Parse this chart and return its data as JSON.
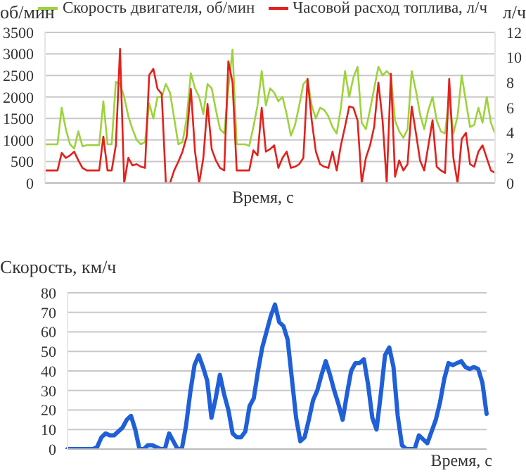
{
  "chart_data": [
    {
      "type": "line",
      "xlabel": "Время, с",
      "ylabel": "об/мин",
      "y2label": "л/ч",
      "categories": [
        null,
        null,
        null,
        null,
        null,
        null,
        null,
        null,
        null,
        null,
        null,
        null,
        null,
        null,
        null,
        null,
        null,
        null,
        null,
        null,
        null,
        null,
        null,
        null,
        null,
        null,
        null,
        null,
        null,
        null,
        null,
        null,
        null,
        null,
        null,
        null,
        null,
        null,
        null,
        null,
        null,
        null,
        null,
        null,
        null,
        null,
        null,
        null,
        null,
        null,
        null,
        null,
        null,
        null,
        null,
        null,
        null,
        null,
        null,
        null,
        null,
        null,
        null,
        null,
        null,
        null,
        null,
        null,
        null,
        null,
        null,
        null,
        null,
        null,
        null,
        null,
        null,
        null,
        null,
        null,
        null,
        null,
        null,
        null,
        null,
        null,
        null,
        null,
        null,
        null,
        null,
        null,
        null,
        null,
        null,
        null,
        null,
        null,
        null,
        null,
        null,
        null,
        null,
        null,
        null,
        null,
        null,
        null,
        null
      ],
      "series": [
        {
          "name": "Скорость двигателя, об/мин",
          "color": "#9ed23c",
          "values": [
            900,
            900,
            900,
            900,
            1750,
            1250,
            900,
            800,
            1200,
            850,
            880,
            880,
            880,
            880,
            1900,
            900,
            900,
            2350,
            2300,
            2000,
            1550,
            1250,
            1000,
            900,
            950,
            1850,
            1500,
            2000,
            2000,
            2300,
            2100,
            1500,
            900,
            950,
            1500,
            2550,
            2200,
            2000,
            1600,
            2300,
            2200,
            1700,
            1250,
            1150,
            2200,
            3100,
            900,
            900,
            900,
            860,
            1300,
            1800,
            2600,
            1800,
            2200,
            2100,
            1900,
            2000,
            1600,
            1100,
            1350,
            1800,
            2300,
            2400,
            1800,
            1500,
            1750,
            1700,
            1550,
            1300,
            1150,
            1750,
            2600,
            2000,
            2450,
            2700,
            1400,
            1250,
            1700,
            2200,
            2700,
            2500,
            2600,
            2500,
            1450,
            1200,
            1050,
            1250,
            2600,
            2150,
            1600,
            1250,
            1700,
            2000,
            1450,
            1200,
            1150,
            2000,
            1150,
            1550,
            2500,
            1900,
            1300,
            1350,
            1750,
            1400,
            2000,
            1400,
            1150
          ]
        },
        {
          "name": "Часовой расход топлива, л/ч",
          "color": "#e3201c",
          "axis": "y2",
          "values": [
            1.0,
            1.0,
            1.0,
            1.0,
            2.4,
            2.0,
            2.2,
            2.5,
            1.8,
            1.2,
            1.0,
            1.0,
            1.0,
            1.0,
            3.7,
            1.0,
            1.0,
            3.0,
            10.7,
            0,
            2.0,
            1.4,
            1.5,
            1.3,
            1.2,
            8.6,
            9.1,
            7.5,
            7.1,
            0,
            0,
            1.0,
            1.7,
            2.5,
            3.7,
            7.5,
            2.5,
            0,
            2.0,
            6.3,
            2.7,
            1.8,
            1.2,
            1.0,
            9.7,
            8.0,
            1.0,
            1.0,
            1.0,
            1.0,
            2.6,
            2.2,
            6.0,
            2.5,
            2.7,
            3.0,
            1.2,
            2.0,
            2.5,
            1.2,
            1.3,
            1.5,
            2.0,
            8.3,
            5.0,
            2.5,
            1.5,
            1.3,
            1.2,
            2.5,
            1.0,
            3.0,
            4.5,
            6.1,
            6.0,
            5.0,
            0,
            2.0,
            3.0,
            4.5,
            8.0,
            5.0,
            0,
            8.7,
            0.5,
            1.8,
            1.0,
            1.5,
            6.1,
            4.0,
            1.8,
            1.0,
            3.0,
            5.0,
            1.3,
            1.0,
            0.8,
            8.3,
            2.0,
            0,
            3.5,
            4.0,
            1.5,
            1.3,
            2.5,
            3.0,
            2.0,
            1.0,
            0.8
          ]
        }
      ],
      "ylim": [
        0,
        3500
      ],
      "yticks": [
        0,
        500,
        1000,
        1500,
        2000,
        2500,
        3000,
        3500
      ],
      "y2lim": [
        0,
        12
      ],
      "y2ticks": [
        0,
        2,
        4,
        6,
        8,
        10,
        12
      ],
      "grid": "y",
      "legend": "top",
      "tick_labels": "y",
      "marker": "none",
      "line_style": "solid"
    },
    {
      "type": "line",
      "xlabel": "Время, с",
      "ylabel": "Скорость, км/ч",
      "categories": [
        null,
        null,
        null,
        null,
        null,
        null,
        null,
        null,
        null,
        null,
        null,
        null,
        null,
        null,
        null,
        null,
        null,
        null,
        null,
        null,
        null,
        null,
        null,
        null,
        null,
        null,
        null,
        null,
        null,
        null,
        null,
        null,
        null,
        null,
        null,
        null,
        null,
        null,
        null,
        null,
        null,
        null,
        null,
        null,
        null,
        null,
        null,
        null,
        null,
        null,
        null,
        null,
        null,
        null,
        null,
        null,
        null,
        null,
        null,
        null,
        null,
        null,
        null,
        null,
        null,
        null,
        null,
        null,
        null,
        null,
        null,
        null,
        null,
        null,
        null,
        null,
        null,
        null,
        null,
        null,
        null,
        null,
        null,
        null,
        null,
        null,
        null,
        null,
        null,
        null,
        null,
        null,
        null,
        null,
        null,
        null,
        null,
        null,
        null,
        null
      ],
      "series": [
        {
          "color": "#1f5fd8",
          "values": [
            0,
            0,
            0,
            0,
            0,
            0,
            0,
            1,
            6,
            8,
            7,
            7,
            9,
            11,
            15,
            17,
            10,
            0,
            0,
            2,
            2,
            1,
            0,
            0,
            8,
            4,
            0,
            0,
            12,
            29,
            43,
            48,
            42,
            35,
            16,
            26,
            38,
            28,
            20,
            8,
            6,
            6,
            9,
            22,
            26,
            40,
            52,
            60,
            68,
            74,
            65,
            63,
            56,
            36,
            16,
            4,
            6,
            15,
            25,
            30,
            38,
            45,
            38,
            30,
            23,
            15,
            28,
            40,
            44,
            44,
            46,
            33,
            16,
            10,
            28,
            48,
            52,
            42,
            17,
            2,
            0,
            0,
            0,
            7,
            5,
            3,
            9,
            15,
            24,
            36,
            44,
            43,
            44,
            45,
            42,
            41,
            42,
            41,
            34,
            18
          ]
        }
      ],
      "ylim": [
        0,
        80
      ],
      "yticks": [
        0,
        10,
        20,
        30,
        40,
        50,
        60,
        70,
        80
      ],
      "grid": "y",
      "tick_labels": "y",
      "marker": "none",
      "line_style": "solid"
    }
  ]
}
